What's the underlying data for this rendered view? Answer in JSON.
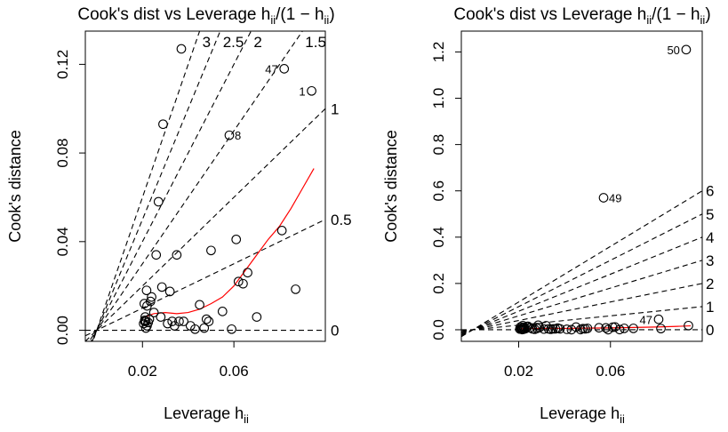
{
  "chart_data": [
    {
      "type": "scatter",
      "title_main": "Cook's dist vs Leverage",
      "title_formula": {
        "lead": "h",
        "sub": "ii",
        "mid": "/(1 − h",
        "sub2": "ii",
        "tail": ")"
      },
      "xlabel": "Leverage",
      "xlabel_formula": {
        "lead": "h",
        "sub": "ii"
      },
      "ylabel": "Cook's distance",
      "xlim": [
        -0.005,
        0.1
      ],
      "ylim": [
        -0.005,
        0.135
      ],
      "x_ticks": [
        "0.02",
        "0.06"
      ],
      "y_ticks": [
        "0.00",
        "0.04",
        "0.08",
        "0.12"
      ],
      "contour_labels": [
        "3",
        "2.5",
        "2",
        "1.5",
        "1",
        "0.5",
        "0"
      ],
      "contour_values": [
        3,
        2.5,
        2,
        1.5,
        1,
        0.5,
        0
      ],
      "points": {
        "x": [
          0.0205,
          0.021,
          0.0215,
          0.022,
          0.0208,
          0.0212,
          0.0218,
          0.0225,
          0.023,
          0.022,
          0.0215,
          0.021,
          0.0235,
          0.024,
          0.025,
          0.026,
          0.027,
          0.028,
          0.029,
          0.0285,
          0.031,
          0.032,
          0.033,
          0.034,
          0.035,
          0.036,
          0.037,
          0.038,
          0.041,
          0.043,
          0.045,
          0.047,
          0.048,
          0.049,
          0.05,
          0.055,
          0.058,
          0.059,
          0.061,
          0.062,
          0.064,
          0.066,
          0.07,
          0.081,
          0.082,
          0.087,
          0.094
        ],
        "y": [
          0.003,
          0.0045,
          0.001,
          0.011,
          0.012,
          0.006,
          0.018,
          0.0035,
          0.005,
          0.002,
          0.004,
          0.004,
          0.013,
          0.015,
          0.008,
          0.034,
          0.058,
          0.006,
          0.093,
          0.0195,
          0.003,
          0.0175,
          0.004,
          0.002,
          0.034,
          0.004,
          0.127,
          0.004,
          0.002,
          0.0005,
          0.0115,
          0.001,
          0.005,
          0.004,
          0.036,
          0.0085,
          0.088,
          0.0005,
          0.041,
          0.022,
          0.021,
          0.026,
          0.006,
          0.045,
          0.118,
          0.0185,
          0.108
        ],
        "labels": [
          {
            "text": "47",
            "index": 44
          },
          {
            "text": "1",
            "index": 46
          },
          {
            "text": "8",
            "index": 36
          }
        ]
      },
      "smooth_line": {
        "x": [
          0.021,
          0.025,
          0.03,
          0.035,
          0.04,
          0.045,
          0.05,
          0.055,
          0.06,
          0.065,
          0.07,
          0.075,
          0.08,
          0.085,
          0.09,
          0.095
        ],
        "y": [
          0.006,
          0.0075,
          0.008,
          0.0075,
          0.008,
          0.0095,
          0.012,
          0.015,
          0.02,
          0.027,
          0.034,
          0.041,
          0.047,
          0.055,
          0.064,
          0.073
        ]
      },
      "colors": {
        "points": "#000000",
        "smooth": "#ff0000",
        "contours": "#000000"
      }
    },
    {
      "type": "scatter",
      "title_main": "Cook's dist vs Leverage",
      "title_formula": {
        "lead": "h",
        "sub": "ii",
        "mid": "/(1 − h",
        "sub2": "ii",
        "tail": ")"
      },
      "xlabel": "Leverage",
      "xlabel_formula": {
        "lead": "h",
        "sub": "ii"
      },
      "ylabel": "Cook's distance",
      "xlim": [
        -0.005,
        0.1
      ],
      "ylim": [
        -0.05,
        1.29
      ],
      "x_ticks": [
        "0.02",
        "0.06"
      ],
      "y_ticks": [
        "0.0",
        "0.2",
        "0.4",
        "0.6",
        "0.8",
        "1.0",
        "1.2"
      ],
      "contour_labels": [
        "6",
        "5",
        "4",
        "3",
        "2",
        "1",
        "0"
      ],
      "contour_values": [
        6,
        5,
        4,
        3,
        2,
        1,
        0
      ],
      "points": {
        "x": [
          0.0205,
          0.021,
          0.0215,
          0.022,
          0.0208,
          0.0212,
          0.0218,
          0.0225,
          0.023,
          0.022,
          0.0215,
          0.021,
          0.0235,
          0.024,
          0.025,
          0.026,
          0.027,
          0.028,
          0.029,
          0.0285,
          0.031,
          0.032,
          0.033,
          0.034,
          0.035,
          0.036,
          0.037,
          0.038,
          0.041,
          0.043,
          0.045,
          0.047,
          0.048,
          0.049,
          0.05,
          0.055,
          0.058,
          0.059,
          0.061,
          0.062,
          0.064,
          0.066,
          0.07,
          0.081,
          0.082,
          0.094,
          0.057,
          0.093
        ],
        "y": [
          0.003,
          0.0045,
          0.001,
          0.011,
          0.012,
          0.006,
          0.018,
          0.0035,
          0.005,
          0.002,
          0.004,
          0.004,
          0.013,
          0.015,
          0.008,
          0.004,
          0.002,
          0.006,
          0.009,
          0.0195,
          0.003,
          0.0175,
          0.004,
          0.002,
          0.004,
          0.004,
          0.007,
          0.004,
          0.002,
          0.0005,
          0.0115,
          0.001,
          0.005,
          0.004,
          0.006,
          0.0085,
          0.008,
          0.0005,
          0.011,
          0.012,
          0.001,
          0.006,
          0.006,
          0.045,
          0.005,
          0.018,
          0.57,
          1.21
        ],
        "labels": [
          {
            "text": "50",
            "index": 47
          },
          {
            "text": "49",
            "index": 46
          },
          {
            "text": "47",
            "index": 43
          }
        ]
      },
      "smooth_line": {
        "x": [
          0.021,
          0.03,
          0.04,
          0.05,
          0.06,
          0.07,
          0.08,
          0.09,
          0.095
        ],
        "y": [
          0.005,
          0.006,
          0.006,
          0.007,
          0.008,
          0.01,
          0.012,
          0.015,
          0.017
        ]
      },
      "colors": {
        "points": "#000000",
        "smooth": "#ff0000",
        "contours": "#000000"
      }
    }
  ]
}
